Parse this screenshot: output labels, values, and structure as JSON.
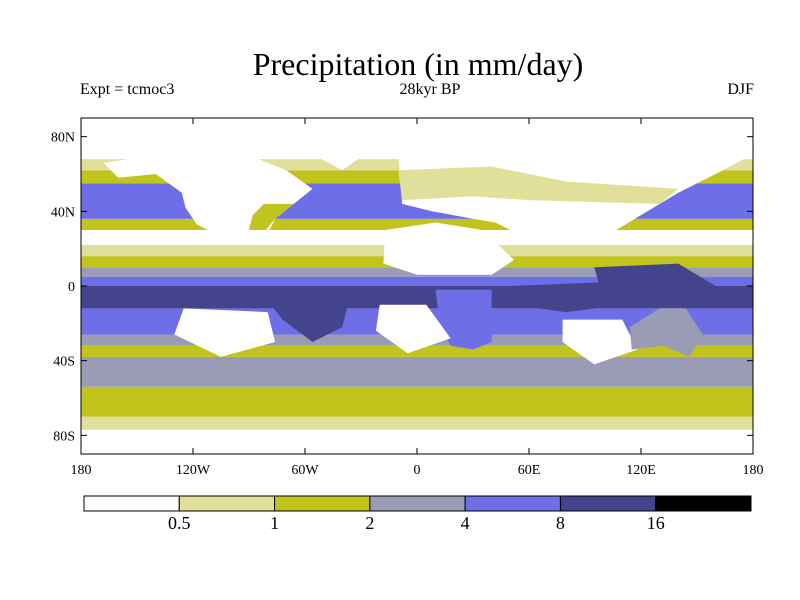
{
  "title": "Precipitation (in mm/day)",
  "experiment": "Expt = tcmoc3",
  "period": "28kyr BP",
  "season": "DJF",
  "axes": {
    "lat_labels": [
      "80N",
      "40N",
      "0",
      "40S",
      "80S"
    ],
    "lat_values": [
      80,
      40,
      0,
      -40,
      -80
    ],
    "lon_labels": [
      "180",
      "120W",
      "60W",
      "0",
      "60E",
      "120E",
      "180"
    ],
    "lon_values": [
      -180,
      -120,
      -60,
      0,
      60,
      120,
      180
    ]
  },
  "legend": {
    "colors": [
      "#ffffff",
      "#e0e09a",
      "#c2c41e",
      "#9a9cb6",
      "#6e6ee8",
      "#44448c",
      "#000000"
    ],
    "labels": [
      "0.5",
      "1",
      "2",
      "4",
      "8",
      "16"
    ],
    "thresholds": [
      0.5,
      1,
      2,
      4,
      8,
      16
    ]
  },
  "chart_data": {
    "type": "heatmap",
    "title": "Precipitation (in mm/day)",
    "variable": "Precipitation",
    "units": "mm/day",
    "experiment": "tcmoc3",
    "period": "28kyr BP",
    "season": "DJF",
    "xlim": [
      -180,
      180
    ],
    "ylim": [
      -90,
      90
    ],
    "bins": [
      [
        0,
        0.5
      ],
      [
        0.5,
        1
      ],
      [
        1,
        2
      ],
      [
        2,
        4
      ],
      [
        4,
        8
      ],
      [
        8,
        16
      ],
      [
        16,
        32
      ]
    ],
    "zonal_bands": [
      {
        "lat": [
          -90,
          -77
        ],
        "level": 0
      },
      {
        "lat": [
          -77,
          -70
        ],
        "level": 1
      },
      {
        "lat": [
          -70,
          -54
        ],
        "level": 2
      },
      {
        "lat": [
          -54,
          -38
        ],
        "level": 3
      },
      {
        "lat": [
          -38,
          -32
        ],
        "level": 2
      },
      {
        "lat": [
          -32,
          -26
        ],
        "level": 3
      },
      {
        "lat": [
          -26,
          -12
        ],
        "level": 4
      },
      {
        "lat": [
          -12,
          0
        ],
        "level": 5
      },
      {
        "lat": [
          0,
          5
        ],
        "level": 4
      },
      {
        "lat": [
          5,
          10
        ],
        "level": 3
      },
      {
        "lat": [
          10,
          16
        ],
        "level": 2
      },
      {
        "lat": [
          16,
          22
        ],
        "level": 1
      },
      {
        "lat": [
          22,
          30
        ],
        "level": 0
      },
      {
        "lat": [
          30,
          36
        ],
        "level": 2
      },
      {
        "lat": [
          36,
          55
        ],
        "level": 4
      },
      {
        "lat": [
          55,
          62
        ],
        "level": 2
      },
      {
        "lat": [
          62,
          68
        ],
        "level": 1
      },
      {
        "lat": [
          68,
          90
        ],
        "level": 0
      }
    ],
    "regions": [
      {
        "name": "North America",
        "level": 0,
        "poly": [
          [
            -168,
            66
          ],
          [
            -140,
            70
          ],
          [
            -95,
            72
          ],
          [
            -70,
            62
          ],
          [
            -56,
            52
          ],
          [
            -66,
            44
          ],
          [
            -76,
            36
          ],
          [
            -81,
            26
          ],
          [
            -82,
            30
          ],
          [
            -90,
            29
          ],
          [
            -97,
            26
          ],
          [
            -106,
            23
          ],
          [
            -112,
            30
          ],
          [
            -118,
            33
          ],
          [
            -124,
            42
          ],
          [
            -126,
            50
          ],
          [
            -140,
            60
          ],
          [
            -160,
            58
          ]
        ]
      },
      {
        "name": "North America wet coast",
        "level": 2,
        "poly": [
          [
            -82,
            44
          ],
          [
            -66,
            44
          ],
          [
            -76,
            36
          ],
          [
            -81,
            30
          ],
          [
            -90,
            30
          ],
          [
            -88,
            38
          ]
        ]
      },
      {
        "name": "Greenland",
        "level": 0,
        "poly": [
          [
            -55,
            82
          ],
          [
            -30,
            84
          ],
          [
            -20,
            76
          ],
          [
            -40,
            62
          ],
          [
            -55,
            70
          ]
        ]
      },
      {
        "name": "Eurasia",
        "level": 0,
        "poly": [
          [
            -10,
            72
          ],
          [
            60,
            76
          ],
          [
            140,
            74
          ],
          [
            175,
            68
          ],
          [
            160,
            60
          ],
          [
            140,
            50
          ],
          [
            130,
            44
          ],
          [
            120,
            38
          ],
          [
            100,
            26
          ],
          [
            78,
            24
          ],
          [
            58,
            26
          ],
          [
            42,
            34
          ],
          [
            30,
            36
          ],
          [
            8,
            40
          ],
          [
            -8,
            44
          ]
        ]
      },
      {
        "name": "Europe wet band",
        "level": 1,
        "poly": [
          [
            -10,
            62
          ],
          [
            40,
            64
          ],
          [
            80,
            56
          ],
          [
            110,
            54
          ],
          [
            140,
            52
          ],
          [
            130,
            44
          ],
          [
            60,
            46
          ],
          [
            30,
            48
          ],
          [
            -8,
            46
          ]
        ]
      },
      {
        "name": "Sahara",
        "level": 0,
        "poly": [
          [
            -17,
            30
          ],
          [
            10,
            34
          ],
          [
            35,
            30
          ],
          [
            52,
            14
          ],
          [
            40,
            6
          ],
          [
            0,
            6
          ],
          [
            -18,
            12
          ]
        ]
      },
      {
        "name": "Southern Africa",
        "level": 4,
        "poly": [
          [
            10,
            -2
          ],
          [
            40,
            -2
          ],
          [
            40,
            -30
          ],
          [
            30,
            -34
          ],
          [
            18,
            -32
          ],
          [
            12,
            -20
          ]
        ]
      },
      {
        "name": "South America",
        "level": 5,
        "poly": [
          [
            -80,
            -4
          ],
          [
            -50,
            0
          ],
          [
            -36,
            -6
          ],
          [
            -40,
            -22
          ],
          [
            -56,
            -30
          ],
          [
            -72,
            -18
          ],
          [
            -80,
            -8
          ]
        ]
      },
      {
        "name": "South Pacific dry",
        "level": 0,
        "poly": [
          [
            -125,
            -12
          ],
          [
            -80,
            -14
          ],
          [
            -76,
            -30
          ],
          [
            -105,
            -38
          ],
          [
            -130,
            -26
          ]
        ]
      },
      {
        "name": "South Atlantic dry",
        "level": 0,
        "poly": [
          [
            -20,
            -10
          ],
          [
            5,
            -10
          ],
          [
            18,
            -28
          ],
          [
            -5,
            -36
          ],
          [
            -22,
            -24
          ]
        ]
      },
      {
        "name": "Indian Ocean dry",
        "level": 0,
        "poly": [
          [
            78,
            -18
          ],
          [
            110,
            -18
          ],
          [
            118,
            -34
          ],
          [
            95,
            -42
          ],
          [
            78,
            -30
          ]
        ]
      },
      {
        "name": "Australia",
        "level": 3,
        "poly": [
          [
            114,
            -22
          ],
          [
            130,
            -12
          ],
          [
            144,
            -12
          ],
          [
            153,
            -26
          ],
          [
            146,
            -38
          ],
          [
            132,
            -32
          ],
          [
            115,
            -34
          ]
        ]
      },
      {
        "name": "Maritime Continent",
        "level": 5,
        "poly": [
          [
            95,
            10
          ],
          [
            140,
            12
          ],
          [
            160,
            0
          ],
          [
            150,
            -10
          ],
          [
            100,
            -8
          ]
        ]
      },
      {
        "name": "Warm pool core",
        "level": 5,
        "poly": [
          [
            50,
            0
          ],
          [
            100,
            2
          ],
          [
            110,
            -10
          ],
          [
            80,
            -14
          ],
          [
            50,
            -10
          ]
        ]
      }
    ]
  }
}
